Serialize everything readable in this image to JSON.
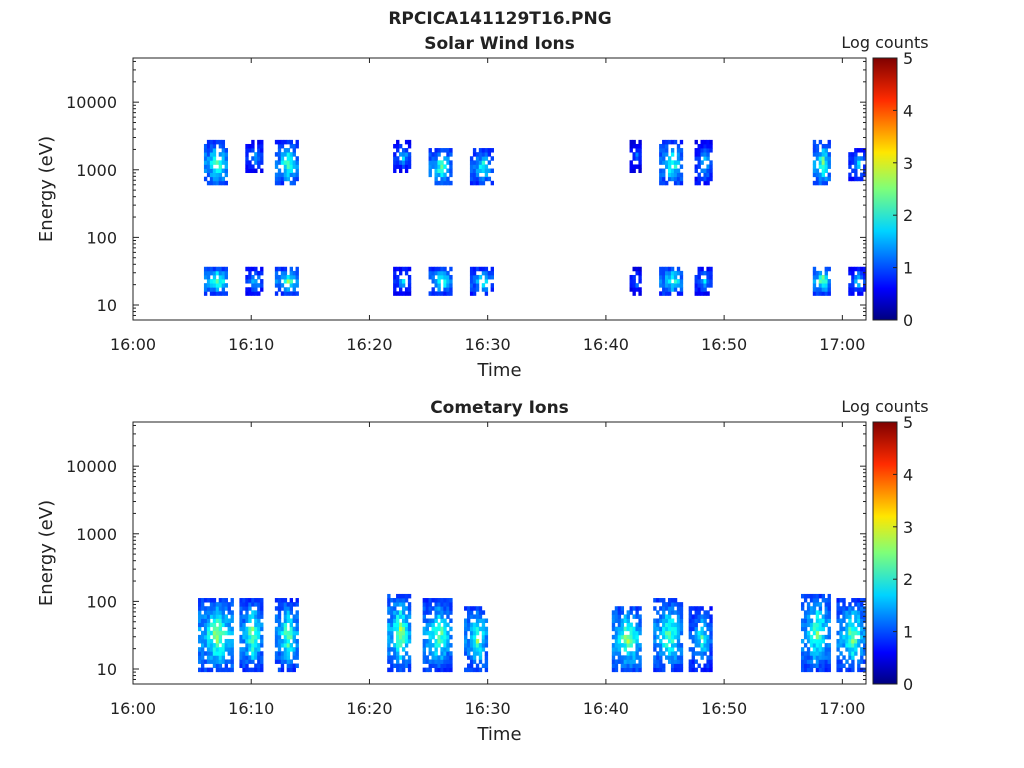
{
  "figure_title": "RPCICA141129T16.PNG",
  "chart_data": [
    {
      "type": "heatmap",
      "title": "Solar Wind Ions",
      "xlabel": "Time",
      "ylabel": "Energy (eV)",
      "x_ticks": [
        "16:00",
        "16:10",
        "16:20",
        "16:30",
        "16:40",
        "16:50",
        "17:00"
      ],
      "x_range_minutes": [
        0,
        62
      ],
      "y_scale": "log",
      "y_ticks": [
        "10",
        "100",
        "1000",
        "10000"
      ],
      "y_range": [
        6,
        45000
      ],
      "colorbar": {
        "label": "Log counts",
        "range": [
          0,
          5
        ],
        "ticks": [
          "0",
          "1",
          "2",
          "3",
          "4",
          "5"
        ],
        "colormap": "jet"
      },
      "grid": false,
      "bursts": [
        {
          "t": [
            6,
            8
          ],
          "energy_bands": [
            [
              15,
              35
            ],
            [
              600,
              2500
            ]
          ],
          "peak_log_counts": 3.0
        },
        {
          "t": [
            9.5,
            11
          ],
          "energy_bands": [
            [
              15,
              35
            ],
            [
              1000,
              2500
            ]
          ],
          "peak_log_counts": 2.0
        },
        {
          "t": [
            12,
            14
          ],
          "energy_bands": [
            [
              15,
              35
            ],
            [
              600,
              2500
            ]
          ],
          "peak_log_counts": 2.8
        },
        {
          "t": [
            22,
            23.5
          ],
          "energy_bands": [
            [
              15,
              35
            ],
            [
              1000,
              2500
            ]
          ],
          "peak_log_counts": 2.0
        },
        {
          "t": [
            25,
            27
          ],
          "energy_bands": [
            [
              15,
              35
            ],
            [
              600,
              2000
            ]
          ],
          "peak_log_counts": 2.8
        },
        {
          "t": [
            28.5,
            30.5
          ],
          "energy_bands": [
            [
              15,
              35
            ],
            [
              600,
              2000
            ]
          ],
          "peak_log_counts": 2.5
        },
        {
          "t": [
            42,
            43
          ],
          "energy_bands": [
            [
              15,
              35
            ],
            [
              1000,
              2500
            ]
          ],
          "peak_log_counts": 1.5
        },
        {
          "t": [
            44.5,
            46.5
          ],
          "energy_bands": [
            [
              15,
              35
            ],
            [
              600,
              2500
            ]
          ],
          "peak_log_counts": 2.8
        },
        {
          "t": [
            47.5,
            49
          ],
          "energy_bands": [
            [
              15,
              35
            ],
            [
              600,
              2500
            ]
          ],
          "peak_log_counts": 2.0
        },
        {
          "t": [
            57.5,
            59
          ],
          "energy_bands": [
            [
              15,
              35
            ],
            [
              600,
              2500
            ]
          ],
          "peak_log_counts": 3.0
        },
        {
          "t": [
            60.5,
            62
          ],
          "energy_bands": [
            [
              15,
              35
            ],
            [
              700,
              2000
            ]
          ],
          "peak_log_counts": 2.0
        }
      ]
    },
    {
      "type": "heatmap",
      "title": "Cometary Ions",
      "xlabel": "Time",
      "ylabel": "Energy (eV)",
      "x_ticks": [
        "16:00",
        "16:10",
        "16:20",
        "16:30",
        "16:40",
        "16:50",
        "17:00"
      ],
      "x_range_minutes": [
        0,
        62
      ],
      "y_scale": "log",
      "y_ticks": [
        "10",
        "100",
        "1000",
        "10000"
      ],
      "y_range": [
        6,
        45000
      ],
      "colorbar": {
        "label": "Log counts",
        "range": [
          0,
          5
        ],
        "ticks": [
          "0",
          "1",
          "2",
          "3",
          "4",
          "5"
        ],
        "colormap": "jet"
      },
      "grid": false,
      "bursts": [
        {
          "t": [
            5.5,
            8.5
          ],
          "energy_bands": [
            [
              10,
              100
            ]
          ],
          "peak_log_counts": 3.2
        },
        {
          "t": [
            9,
            11
          ],
          "energy_bands": [
            [
              10,
              100
            ]
          ],
          "peak_log_counts": 3.0
        },
        {
          "t": [
            12,
            14
          ],
          "energy_bands": [
            [
              10,
              100
            ]
          ],
          "peak_log_counts": 3.0
        },
        {
          "t": [
            21.5,
            23.5
          ],
          "energy_bands": [
            [
              10,
              120
            ]
          ],
          "peak_log_counts": 3.2
        },
        {
          "t": [
            24.5,
            27
          ],
          "energy_bands": [
            [
              10,
              100
            ]
          ],
          "peak_log_counts": 3.0
        },
        {
          "t": [
            28,
            30
          ],
          "energy_bands": [
            [
              10,
              80
            ]
          ],
          "peak_log_counts": 3.0
        },
        {
          "t": [
            40.5,
            43
          ],
          "energy_bands": [
            [
              10,
              80
            ]
          ],
          "peak_log_counts": 3.2
        },
        {
          "t": [
            44,
            46.5
          ],
          "energy_bands": [
            [
              10,
              100
            ]
          ],
          "peak_log_counts": 3.0
        },
        {
          "t": [
            47,
            49
          ],
          "energy_bands": [
            [
              10,
              80
            ]
          ],
          "peak_log_counts": 2.5
        },
        {
          "t": [
            56.5,
            59
          ],
          "energy_bands": [
            [
              10,
              120
            ]
          ],
          "peak_log_counts": 3.0
        },
        {
          "t": [
            59.5,
            62
          ],
          "energy_bands": [
            [
              10,
              100
            ]
          ],
          "peak_log_counts": 3.0
        }
      ]
    }
  ]
}
